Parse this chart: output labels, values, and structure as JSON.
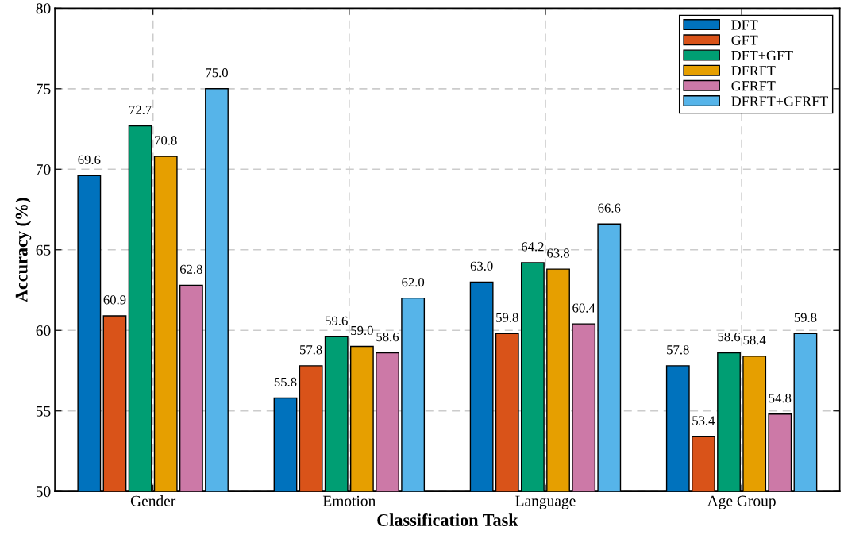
{
  "chart_data": {
    "type": "bar",
    "xlabel": "Classification Task",
    "ylabel": "Accuracy (%)",
    "categories": [
      "Gender",
      "Emotion",
      "Language",
      "Age Group"
    ],
    "series": [
      {
        "name": "DFT",
        "color": "#0072bd",
        "values": [
          69.6,
          55.8,
          63.0,
          57.8
        ],
        "value_labels": [
          "69.6",
          "55.8",
          "63.0",
          "57.8"
        ]
      },
      {
        "name": "GFT",
        "color": "#d95319",
        "values": [
          60.9,
          57.8,
          59.8,
          53.4
        ],
        "value_labels": [
          "60.9",
          "57.8",
          "59.8",
          "53.4"
        ]
      },
      {
        "name": "DFT+GFT",
        "color": "#009e73",
        "values": [
          72.7,
          59.6,
          64.2,
          58.6
        ],
        "value_labels": [
          "72.7",
          "59.6",
          "64.2",
          "58.6"
        ]
      },
      {
        "name": "DFRFT",
        "color": "#e69f00",
        "values": [
          70.8,
          59.0,
          63.8,
          58.4
        ],
        "value_labels": [
          "70.8",
          "59.0",
          "63.8",
          "58.4"
        ]
      },
      {
        "name": "GFRFT",
        "color": "#cc79a7",
        "values": [
          62.8,
          58.6,
          60.4,
          54.8
        ],
        "value_labels": [
          "62.8",
          "58.6",
          "60.4",
          "54.8"
        ]
      },
      {
        "name": "DFRFT+GFRFT",
        "color": "#56b4e9",
        "values": [
          75.0,
          62.0,
          66.6,
          59.8
        ],
        "value_labels": [
          "75.0",
          "62.0",
          "66.6",
          "59.8"
        ]
      }
    ],
    "ylim": [
      50,
      80
    ],
    "yticks": [
      50,
      55,
      60,
      65,
      70,
      75,
      80
    ],
    "grid": true,
    "legend": "top right"
  }
}
